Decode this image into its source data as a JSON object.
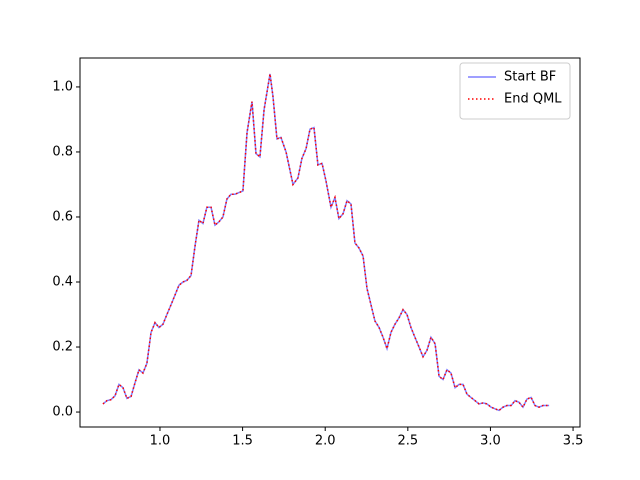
{
  "chart_data": {
    "type": "line",
    "x": [
      0.655,
      0.679,
      0.703,
      0.728,
      0.752,
      0.776,
      0.8,
      0.825,
      0.849,
      0.873,
      0.897,
      0.921,
      0.946,
      0.97,
      0.994,
      1.018,
      1.042,
      1.067,
      1.091,
      1.115,
      1.139,
      1.163,
      1.188,
      1.212,
      1.236,
      1.26,
      1.284,
      1.309,
      1.333,
      1.357,
      1.381,
      1.405,
      1.43,
      1.454,
      1.478,
      1.502,
      1.527,
      1.557,
      1.581,
      1.605,
      1.63,
      1.666,
      1.684,
      1.708,
      1.732,
      1.763,
      1.805,
      1.835,
      1.859,
      1.884,
      1.908,
      1.932,
      1.956,
      1.981,
      2.005,
      2.035,
      2.059,
      2.083,
      2.108,
      2.132,
      2.156,
      2.18,
      2.204,
      2.229,
      2.253,
      2.277,
      2.301,
      2.326,
      2.35,
      2.374,
      2.398,
      2.422,
      2.447,
      2.471,
      2.495,
      2.519,
      2.543,
      2.568,
      2.592,
      2.616,
      2.64,
      2.665,
      2.689,
      2.713,
      2.737,
      2.761,
      2.786,
      2.81,
      2.834,
      2.858,
      2.882,
      2.907,
      2.931,
      2.955,
      2.979,
      3.004,
      3.028,
      3.052,
      3.076,
      3.1,
      3.125,
      3.149,
      3.173,
      3.197,
      3.221,
      3.246,
      3.27,
      3.294,
      3.318,
      3.355
    ],
    "series": [
      {
        "name": "Start BF",
        "color": "#0000ff",
        "opacity": 0.5,
        "dash": "solid",
        "values": [
          0.025,
          0.035,
          0.038,
          0.05,
          0.085,
          0.075,
          0.042,
          0.048,
          0.09,
          0.13,
          0.12,
          0.15,
          0.245,
          0.275,
          0.26,
          0.27,
          0.3,
          0.33,
          0.36,
          0.39,
          0.4,
          0.405,
          0.42,
          0.51,
          0.59,
          0.58,
          0.63,
          0.63,
          0.575,
          0.585,
          0.6,
          0.655,
          0.67,
          0.67,
          0.675,
          0.68,
          0.86,
          0.955,
          0.795,
          0.785,
          0.93,
          1.04,
          0.97,
          0.84,
          0.845,
          0.8,
          0.7,
          0.72,
          0.78,
          0.81,
          0.87,
          0.875,
          0.76,
          0.765,
          0.71,
          0.63,
          0.66,
          0.595,
          0.61,
          0.65,
          0.64,
          0.52,
          0.505,
          0.48,
          0.38,
          0.33,
          0.28,
          0.26,
          0.23,
          0.195,
          0.245,
          0.27,
          0.29,
          0.315,
          0.3,
          0.26,
          0.23,
          0.2,
          0.17,
          0.19,
          0.23,
          0.21,
          0.11,
          0.1,
          0.13,
          0.12,
          0.075,
          0.085,
          0.085,
          0.055,
          0.045,
          0.035,
          0.025,
          0.028,
          0.025,
          0.015,
          0.01,
          0.005,
          0.015,
          0.02,
          0.02,
          0.035,
          0.03,
          0.015,
          0.04,
          0.045,
          0.02,
          0.015,
          0.02,
          0.02
        ]
      },
      {
        "name": "End QML",
        "color": "#ff0000",
        "opacity": 1,
        "dash": "dotted",
        "values": [
          0.025,
          0.035,
          0.038,
          0.05,
          0.085,
          0.075,
          0.042,
          0.048,
          0.09,
          0.13,
          0.12,
          0.15,
          0.245,
          0.275,
          0.26,
          0.27,
          0.3,
          0.33,
          0.36,
          0.39,
          0.4,
          0.405,
          0.42,
          0.51,
          0.59,
          0.58,
          0.63,
          0.63,
          0.575,
          0.585,
          0.6,
          0.655,
          0.67,
          0.67,
          0.675,
          0.68,
          0.86,
          0.955,
          0.795,
          0.785,
          0.93,
          1.04,
          0.97,
          0.84,
          0.845,
          0.8,
          0.7,
          0.72,
          0.78,
          0.81,
          0.87,
          0.875,
          0.76,
          0.765,
          0.71,
          0.63,
          0.66,
          0.595,
          0.61,
          0.65,
          0.64,
          0.52,
          0.505,
          0.48,
          0.38,
          0.33,
          0.28,
          0.26,
          0.23,
          0.195,
          0.245,
          0.27,
          0.29,
          0.315,
          0.3,
          0.26,
          0.23,
          0.2,
          0.17,
          0.19,
          0.23,
          0.21,
          0.11,
          0.1,
          0.13,
          0.12,
          0.075,
          0.085,
          0.085,
          0.055,
          0.045,
          0.035,
          0.025,
          0.028,
          0.025,
          0.015,
          0.01,
          0.005,
          0.015,
          0.02,
          0.02,
          0.035,
          0.03,
          0.015,
          0.04,
          0.045,
          0.02,
          0.015,
          0.02,
          0.02
        ]
      }
    ],
    "xlim": [
      0.516,
      3.542
    ],
    "ylim": [
      -0.046,
      1.089
    ],
    "xticks": [
      {
        "value": 1,
        "label": "1.0"
      },
      {
        "value": 1.5,
        "label": "1.5"
      },
      {
        "value": 2,
        "label": "2.0"
      },
      {
        "value": 2.5,
        "label": "2.5"
      },
      {
        "value": 3,
        "label": "3.0"
      },
      {
        "value": 3.5,
        "label": "3.5"
      }
    ],
    "yticks": [
      {
        "value": 0,
        "label": "0.0"
      },
      {
        "value": 0.2,
        "label": "0.2"
      },
      {
        "value": 0.4,
        "label": "0.4"
      },
      {
        "value": 0.6,
        "label": "0.6"
      },
      {
        "value": 0.8,
        "label": "0.8"
      },
      {
        "value": 1,
        "label": "1.0"
      }
    ],
    "grid": false,
    "legend": "upper right"
  }
}
